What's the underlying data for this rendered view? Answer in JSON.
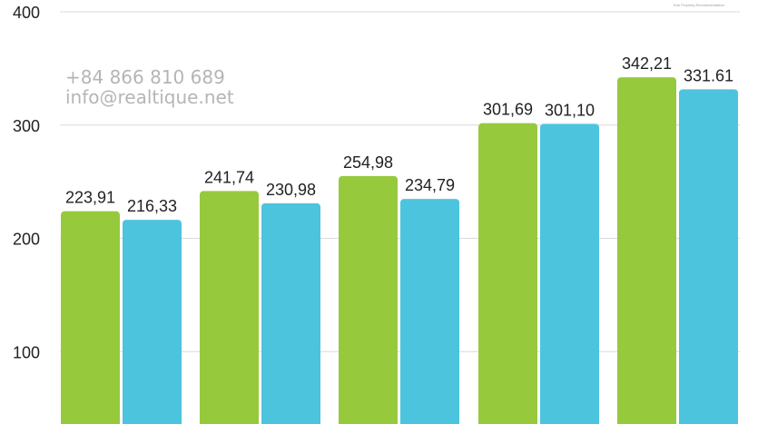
{
  "contact": {
    "phone": "+84 866 810 689",
    "email": "info@realtique.net"
  },
  "brand_tagline": "Edu Property Recommendation",
  "colors": {
    "series_a": "#97c93d",
    "series_b": "#4dc4de",
    "grid": "#d9d9d9",
    "text": "#222222",
    "contact": "#b5b5b5"
  },
  "chart_data": {
    "type": "bar",
    "ylim": [
      0,
      400
    ],
    "yticks": [
      100,
      200,
      300,
      400
    ],
    "ytick_labels": [
      "100",
      "200",
      "300",
      "400"
    ],
    "grid": true,
    "categories": [
      "",
      "",
      "",
      "",
      ""
    ],
    "series": [
      {
        "values": [
          223.91,
          241.74,
          254.98,
          301.69,
          342.21
        ],
        "labels": [
          "223,91",
          "241,74",
          "254,98",
          "301,69",
          "342,21"
        ]
      },
      {
        "values": [
          216.33,
          230.98,
          234.79,
          301.1,
          331.61
        ],
        "labels": [
          "216,33",
          "230,98",
          "234,79",
          "301,10",
          "331.61"
        ]
      }
    ]
  }
}
